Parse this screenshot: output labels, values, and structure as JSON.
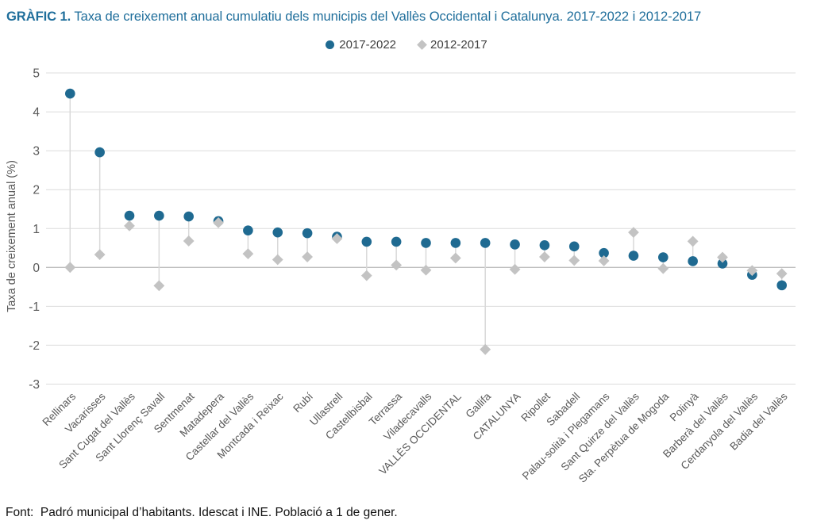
{
  "title": {
    "prefix": "GRÀFIC 1.",
    "rest": " Taxa de creixement anual cumulatiu dels municipis del Vallès Occidental i Catalunya. 2017-2022 i 2012-2017"
  },
  "footer": "Font:  Padró municipal d’habitants. Idescat i INE. Població a 1 de gener.",
  "colors": {
    "title": "#1F6E9B",
    "series_2017_2022": "#1F6A91",
    "series_2012_2017": "#C3C3C3",
    "stem": "#D9D9D9",
    "gridline": "#DCDCDC",
    "zero_axis": "#BFBFBF",
    "axis_text": "#595959"
  },
  "chart_data": {
    "type": "scatter",
    "subtype": "dumbbell-lollipop",
    "title": "Taxa de creixement anual cumulatiu dels municipis del Vallès Occidental i Catalunya. 2017-2022 i 2012-2017",
    "xlabel": "",
    "ylabel": "Taxa de creixement anual (%)",
    "ylim": [
      -3,
      5
    ],
    "yticks": [
      5,
      4,
      3,
      2,
      1,
      0,
      -1,
      -2,
      -3
    ],
    "grid": true,
    "legend_position": "top-center",
    "categories": [
      "Rellinars",
      "Vacarisses",
      "Sant Cugat del Vallès",
      "Sant Llorenç Savall",
      "Sentmenat",
      "Matadepera",
      "Castellar del Vallès",
      "Montcada i Reixac",
      "Rubí",
      "Ullastrell",
      "Castellbisbal",
      "Terrassa",
      "Viladecavalls",
      "VALLÈS OCCIDENTAL",
      "Gallifa",
      "CATALUNYA",
      "Ripollet",
      "Sabadell",
      "Palau-solità i Plegamans",
      "Sant Quirze del Vallès",
      "Sta. Perpètua de Mogoda",
      "Polinyà",
      "Barberà del Vallès",
      "Cerdanyola del Vallès",
      "Badia del Vallès"
    ],
    "series": [
      {
        "name": "2017-2022",
        "marker": "circle",
        "color": "#1F6A91",
        "values": [
          4.47,
          2.96,
          1.33,
          1.33,
          1.31,
          1.19,
          0.95,
          0.9,
          0.88,
          0.79,
          0.66,
          0.66,
          0.63,
          0.63,
          0.63,
          0.59,
          0.57,
          0.54,
          0.37,
          0.3,
          0.26,
          0.16,
          0.1,
          -0.19,
          -0.46
        ]
      },
      {
        "name": "2012-2017",
        "marker": "diamond",
        "color": "#C3C3C3",
        "values": [
          0.0,
          0.33,
          1.07,
          -0.47,
          0.68,
          1.15,
          0.35,
          0.2,
          0.27,
          0.74,
          -0.21,
          0.06,
          -0.07,
          0.24,
          -2.11,
          -0.05,
          0.27,
          0.18,
          0.17,
          0.9,
          -0.03,
          0.67,
          0.26,
          -0.08,
          -0.16
        ]
      }
    ]
  }
}
